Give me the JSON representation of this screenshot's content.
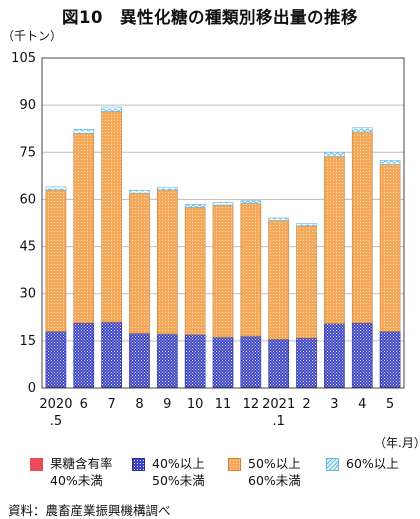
{
  "title": "図10　異性化糖の種類別移出量の推移",
  "source": "資料：農畜産業振興機構調べ",
  "colors": {
    "fructose_lt40": "#e94b5a",
    "fructose_40_50": "#3d44c4",
    "fructose_50_60": "#f4a95a",
    "fructose_ge60": "#6ec6e8"
  },
  "chart_data": {
    "type": "bar",
    "stacked": true,
    "y_unit_label": "（千トン）",
    "x_unit_label": "（年.月）",
    "ylim": [
      0,
      105
    ],
    "yticks": [
      0,
      15,
      30,
      45,
      60,
      75,
      90,
      105
    ],
    "grid": true,
    "legend_position": "bottom",
    "categories": [
      "2020\n.5",
      "6",
      "7",
      "8",
      "9",
      "10",
      "11",
      "12",
      "2021\n.1",
      "2",
      "3",
      "4",
      "5"
    ],
    "series": [
      {
        "name": "果糖含有率\n40%未満",
        "values": [
          0.2,
          0.2,
          0.2,
          0.2,
          0.2,
          0.2,
          0.2,
          0.2,
          0.2,
          0.2,
          0.2,
          0.2,
          0.2
        ]
      },
      {
        "name": "40%以上\n50%未満",
        "values": [
          17.8,
          20.5,
          20.8,
          17.2,
          17.0,
          16.8,
          16.0,
          16.3,
          15.3,
          15.7,
          20.3,
          20.5,
          17.8
        ]
      },
      {
        "name": "50%以上\n60%未満",
        "values": [
          45.0,
          60.3,
          67.0,
          44.6,
          45.8,
          40.5,
          42.0,
          42.3,
          37.8,
          35.7,
          53.3,
          60.8,
          53.2
        ]
      },
      {
        "name": "60%以上",
        "values": [
          1.0,
          1.3,
          1.4,
          0.9,
          0.9,
          0.9,
          0.8,
          0.8,
          0.8,
          0.8,
          1.2,
          1.3,
          1.2
        ]
      }
    ]
  }
}
